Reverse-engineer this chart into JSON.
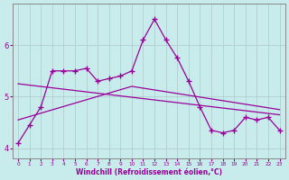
{
  "xlabel": "Windchill (Refroidissement éolien,°C)",
  "bg_color": "#c8ecec",
  "line_color": "#990099",
  "grid_color": "#b0c8c8",
  "hours": [
    0,
    1,
    2,
    3,
    4,
    5,
    6,
    7,
    8,
    9,
    10,
    11,
    12,
    13,
    14,
    15,
    16,
    17,
    18,
    19,
    20,
    21,
    22,
    23
  ],
  "data_line": [
    4.1,
    4.45,
    4.8,
    5.5,
    5.5,
    5.5,
    5.55,
    5.3,
    5.35,
    5.4,
    5.5,
    6.1,
    6.5,
    6.1,
    5.75,
    5.3,
    4.8,
    4.35,
    4.3,
    4.35,
    4.6,
    4.55,
    4.6,
    4.35
  ],
  "trend1_x": [
    0,
    23
  ],
  "trend1_y": [
    5.25,
    4.65
  ],
  "trend2_x": [
    0,
    10,
    23
  ],
  "trend2_y": [
    4.55,
    5.2,
    4.75
  ],
  "ylim": [
    3.8,
    6.8
  ],
  "xlim": [
    -0.5,
    23.5
  ],
  "yticks": [
    4,
    5,
    6
  ],
  "xticks": [
    0,
    1,
    2,
    3,
    4,
    5,
    6,
    7,
    8,
    9,
    10,
    11,
    12,
    13,
    14,
    15,
    16,
    17,
    18,
    19,
    20,
    21,
    22,
    23
  ]
}
